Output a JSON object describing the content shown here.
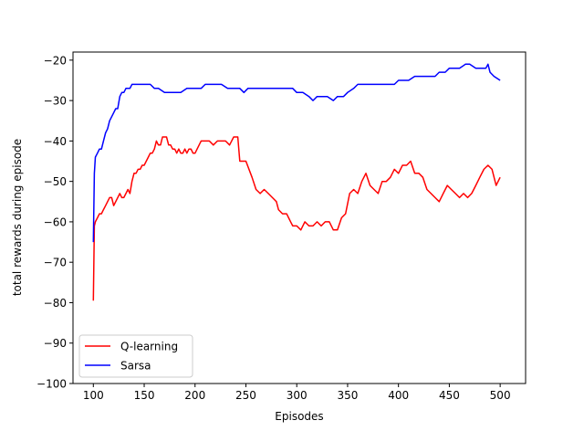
{
  "chart_data": {
    "type": "line",
    "title": "",
    "xlabel": "Episodes",
    "ylabel": "total rewards during episode",
    "xlim": [
      80,
      525
    ],
    "ylim": [
      -100,
      -18
    ],
    "xticks": [
      100,
      150,
      200,
      250,
      300,
      350,
      400,
      450,
      500
    ],
    "yticks": [
      -100,
      -90,
      -80,
      -70,
      -60,
      -50,
      -40,
      -30,
      -20
    ],
    "grid": false,
    "legend_position": "lower left",
    "series": [
      {
        "name": "Q-learning",
        "color": "#ff0000",
        "x": [
          100,
          101,
          102,
          104,
          106,
          108,
          110,
          112,
          114,
          116,
          118,
          120,
          122,
          124,
          126,
          128,
          130,
          132,
          134,
          136,
          138,
          140,
          142,
          144,
          146,
          148,
          150,
          154,
          156,
          158,
          160,
          162,
          164,
          166,
          168,
          170,
          172,
          174,
          176,
          178,
          180,
          182,
          184,
          186,
          188,
          190,
          192,
          194,
          196,
          198,
          200,
          204,
          206,
          210,
          214,
          218,
          222,
          226,
          230,
          234,
          238,
          242,
          244,
          248,
          250,
          256,
          260,
          264,
          268,
          272,
          276,
          280,
          282,
          286,
          290,
          292,
          294,
          296,
          298,
          300,
          304,
          308,
          312,
          316,
          320,
          324,
          328,
          332,
          336,
          340,
          344,
          348,
          352,
          356,
          360,
          364,
          368,
          372,
          376,
          380,
          384,
          388,
          392,
          396,
          400,
          404,
          408,
          412,
          416,
          420,
          424,
          428,
          432,
          436,
          440,
          444,
          448,
          452,
          456,
          460,
          464,
          468,
          472,
          476,
          480,
          484,
          488,
          492,
          496,
          500
        ],
        "y": [
          -79.5,
          -61,
          -60,
          -59,
          -58,
          -58,
          -57,
          -56,
          -55,
          -54,
          -54,
          -56,
          -55,
          -54,
          -53,
          -54,
          -54,
          -53,
          -52,
          -53,
          -50,
          -48,
          -48,
          -47,
          -47,
          -46,
          -46,
          -44,
          -43,
          -43,
          -42,
          -40,
          -41,
          -41,
          -39,
          -39,
          -39,
          -41,
          -41,
          -42,
          -42,
          -43,
          -42,
          -43,
          -43,
          -42,
          -43,
          -42,
          -42,
          -43,
          -43,
          -41,
          -40,
          -40,
          -40,
          -41,
          -40,
          -40,
          -40,
          -41,
          -39,
          -39,
          -45,
          -45,
          -45,
          -49,
          -52,
          -53,
          -52,
          -53,
          -54,
          -55,
          -57,
          -58,
          -58,
          -59,
          -60,
          -61,
          -61,
          -61,
          -62,
          -60,
          -61,
          -61,
          -60,
          -61,
          -60,
          -60,
          -62,
          -62,
          -59,
          -58,
          -53,
          -52,
          -53,
          -50,
          -48,
          -51,
          -52,
          -53,
          -50,
          -50,
          -49,
          -47,
          -48,
          -46,
          -46,
          -45,
          -48,
          -48,
          -49,
          -52,
          -53,
          -54,
          -55,
          -53,
          -51,
          -52,
          -53,
          -54,
          -53,
          -54,
          -53,
          -51,
          -49,
          -47,
          -46,
          -47,
          -51,
          -49
        ]
      },
      {
        "name": "Sarsa",
        "color": "#0000ff",
        "x": [
          100,
          101,
          102,
          104,
          106,
          108,
          110,
          112,
          114,
          116,
          118,
          120,
          122,
          124,
          126,
          128,
          130,
          132,
          134,
          136,
          138,
          140,
          144,
          148,
          152,
          156,
          160,
          164,
          170,
          176,
          180,
          186,
          192,
          196,
          200,
          206,
          210,
          216,
          222,
          226,
          232,
          236,
          240,
          244,
          248,
          252,
          256,
          260,
          266,
          272,
          278,
          284,
          290,
          296,
          300,
          306,
          312,
          316,
          320,
          326,
          330,
          336,
          340,
          346,
          350,
          356,
          360,
          366,
          372,
          378,
          384,
          390,
          396,
          400,
          406,
          410,
          416,
          420,
          426,
          430,
          436,
          440,
          446,
          450,
          456,
          460,
          466,
          470,
          476,
          480,
          486,
          488,
          490,
          494,
          500
        ],
        "y": [
          -65,
          -48,
          -44,
          -43,
          -42,
          -42,
          -40,
          -38,
          -37,
          -35,
          -34,
          -33,
          -32,
          -32,
          -29,
          -28,
          -28,
          -27,
          -27,
          -27,
          -26,
          -26,
          -26,
          -26,
          -26,
          -26,
          -27,
          -27,
          -28,
          -28,
          -28,
          -28,
          -27,
          -27,
          -27,
          -27,
          -26,
          -26,
          -26,
          -26,
          -27,
          -27,
          -27,
          -27,
          -28,
          -27,
          -27,
          -27,
          -27,
          -27,
          -27,
          -27,
          -27,
          -27,
          -28,
          -28,
          -29,
          -30,
          -29,
          -29,
          -29,
          -30,
          -29,
          -29,
          -28,
          -27,
          -26,
          -26,
          -26,
          -26,
          -26,
          -26,
          -26,
          -25,
          -25,
          -25,
          -24,
          -24,
          -24,
          -24,
          -24,
          -23,
          -23,
          -22,
          -22,
          -22,
          -21,
          -21,
          -22,
          -22,
          -22,
          -21,
          -23,
          -24,
          -25
        ]
      }
    ]
  }
}
